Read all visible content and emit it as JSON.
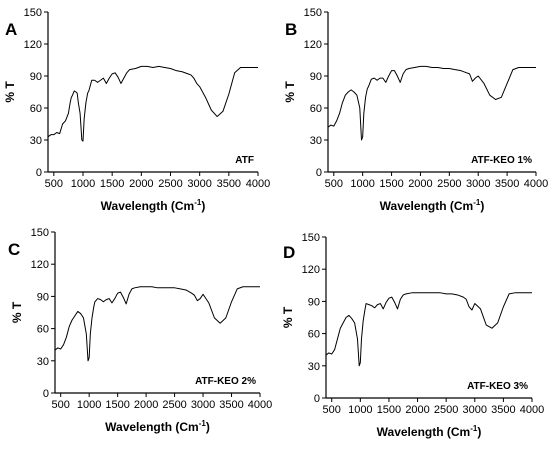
{
  "chart_data": [
    {
      "type": "line",
      "panel_label": "A",
      "annotation": "ATF",
      "xlabel": "Wavelength (Cm",
      "xlabel_sup": "-1",
      "xlabel_close": ")",
      "ylabel": "% T",
      "xlim": [
        400,
        4000
      ],
      "ylim": [
        0,
        150
      ],
      "xticks": [
        "500",
        "1000",
        "1500",
        "2000",
        "2500",
        "3000",
        "3500",
        "4000"
      ],
      "yticks": [
        "0",
        "30",
        "60",
        "90",
        "120",
        "150"
      ],
      "series": [
        {
          "x": [
            400,
            450,
            500,
            550,
            600,
            650,
            700,
            750,
            780,
            800,
            820,
            850,
            880,
            900,
            920,
            950,
            980,
            1000,
            1020,
            1050,
            1080,
            1100,
            1150,
            1200,
            1250,
            1300,
            1350,
            1400,
            1450,
            1500,
            1550,
            1600,
            1650,
            1700,
            1750,
            1800,
            1900,
            2000,
            2100,
            2200,
            2300,
            2400,
            2500,
            2600,
            2700,
            2800,
            2850,
            2900,
            2950,
            3000,
            3100,
            3200,
            3300,
            3400,
            3500,
            3600,
            3700,
            3800,
            3900,
            4000
          ],
          "y": [
            33,
            35,
            35,
            37,
            36,
            45,
            48,
            55,
            65,
            70,
            72,
            76,
            75,
            74,
            65,
            55,
            30,
            29,
            50,
            65,
            74,
            76,
            86,
            86,
            84,
            86,
            88,
            83,
            88,
            92,
            93,
            89,
            83,
            88,
            93,
            96,
            97,
            99,
            99,
            98,
            99,
            98,
            97,
            95,
            94,
            92,
            91,
            88,
            83,
            80,
            70,
            58,
            52,
            57,
            73,
            93,
            98,
            98,
            98,
            98
          ]
        }
      ]
    },
    {
      "type": "line",
      "panel_label": "B",
      "annotation": "ATF-KEO 1%",
      "xlabel": "Wavelength (Cm",
      "xlabel_sup": "-1",
      "xlabel_close": ")",
      "ylabel": "% T",
      "xlim": [
        400,
        4000
      ],
      "ylim": [
        0,
        150
      ],
      "xticks": [
        "500",
        "1000",
        "1500",
        "2000",
        "2500",
        "3000",
        "3500",
        "4000"
      ],
      "yticks": [
        "0",
        "30",
        "60",
        "90",
        "120",
        "150"
      ],
      "series": [
        {
          "x": [
            400,
            450,
            500,
            550,
            600,
            650,
            700,
            750,
            800,
            850,
            900,
            950,
            980,
            1000,
            1020,
            1050,
            1080,
            1100,
            1150,
            1200,
            1250,
            1300,
            1350,
            1400,
            1450,
            1500,
            1550,
            1600,
            1650,
            1700,
            1750,
            1800,
            1900,
            2000,
            2100,
            2200,
            2300,
            2400,
            2500,
            2600,
            2700,
            2800,
            2850,
            2900,
            2950,
            3000,
            3100,
            3200,
            3300,
            3400,
            3500,
            3600,
            3700,
            3800,
            3900,
            4000
          ],
          "y": [
            42,
            44,
            43,
            48,
            55,
            65,
            72,
            75,
            77,
            75,
            72,
            60,
            30,
            33,
            55,
            70,
            78,
            80,
            87,
            88,
            86,
            88,
            88,
            84,
            90,
            95,
            95,
            90,
            84,
            92,
            96,
            97,
            98,
            99,
            99,
            98,
            98,
            97,
            97,
            96,
            95,
            93,
            92,
            85,
            88,
            90,
            83,
            72,
            68,
            70,
            83,
            96,
            98,
            98,
            98,
            98
          ]
        }
      ]
    },
    {
      "type": "line",
      "panel_label": "C",
      "annotation": "ATF-KEO 2%",
      "xlabel": "Wavelength (Cm",
      "xlabel_sup": "-1",
      "xlabel_close": ")",
      "ylabel": "% T",
      "xlim": [
        400,
        4000
      ],
      "ylim": [
        0,
        150
      ],
      "xticks": [
        "500",
        "1000",
        "1500",
        "2000",
        "2500",
        "3000",
        "3500",
        "4000"
      ],
      "yticks": [
        "0",
        "30",
        "60",
        "90",
        "120",
        "150"
      ],
      "series": [
        {
          "x": [
            400,
            450,
            500,
            550,
            600,
            650,
            700,
            750,
            800,
            850,
            900,
            950,
            980,
            1000,
            1020,
            1050,
            1080,
            1100,
            1150,
            1200,
            1250,
            1300,
            1350,
            1400,
            1450,
            1500,
            1550,
            1600,
            1650,
            1700,
            1750,
            1800,
            1900,
            2000,
            2100,
            2200,
            2300,
            2400,
            2500,
            2600,
            2700,
            2800,
            2850,
            2900,
            2950,
            3000,
            3100,
            3200,
            3300,
            3400,
            3500,
            3600,
            3700,
            3800,
            3900,
            4000
          ],
          "y": [
            40,
            42,
            41,
            45,
            52,
            62,
            68,
            72,
            76,
            74,
            70,
            55,
            30,
            33,
            55,
            70,
            80,
            85,
            88,
            87,
            85,
            87,
            88,
            84,
            88,
            93,
            94,
            89,
            83,
            92,
            97,
            98,
            99,
            99,
            99,
            98,
            98,
            98,
            98,
            97,
            96,
            93,
            91,
            86,
            88,
            92,
            84,
            70,
            65,
            70,
            85,
            97,
            99,
            99,
            99,
            99
          ]
        }
      ]
    },
    {
      "type": "line",
      "panel_label": "D",
      "annotation": "ATF-KEO 3%",
      "xlabel": "Wavelength (Cm",
      "xlabel_sup": "-1",
      "xlabel_close": ")",
      "ylabel": "% T",
      "xlim": [
        400,
        4000
      ],
      "ylim": [
        0,
        150
      ],
      "xticks": [
        "500",
        "1000",
        "1500",
        "2000",
        "2500",
        "3000",
        "3500",
        "4000"
      ],
      "yticks": [
        "0",
        "30",
        "60",
        "90",
        "120",
        "150"
      ],
      "series": [
        {
          "x": [
            400,
            450,
            500,
            550,
            600,
            650,
            700,
            750,
            800,
            850,
            900,
            950,
            980,
            1000,
            1020,
            1050,
            1080,
            1100,
            1150,
            1200,
            1250,
            1300,
            1350,
            1400,
            1450,
            1500,
            1550,
            1600,
            1650,
            1700,
            1750,
            1800,
            1900,
            2000,
            2100,
            2200,
            2300,
            2400,
            2500,
            2600,
            2700,
            2800,
            2850,
            2900,
            2950,
            3000,
            3100,
            3200,
            3300,
            3400,
            3500,
            3600,
            3700,
            3800,
            3900,
            4000
          ],
          "y": [
            40,
            42,
            41,
            45,
            55,
            65,
            70,
            75,
            77,
            74,
            70,
            55,
            30,
            33,
            55,
            72,
            82,
            88,
            87,
            86,
            84,
            87,
            88,
            83,
            89,
            93,
            94,
            89,
            83,
            92,
            96,
            97,
            98,
            98,
            98,
            98,
            98,
            98,
            97,
            97,
            96,
            94,
            92,
            85,
            82,
            88,
            83,
            68,
            65,
            70,
            85,
            97,
            98,
            98,
            98,
            98
          ]
        }
      ]
    }
  ]
}
